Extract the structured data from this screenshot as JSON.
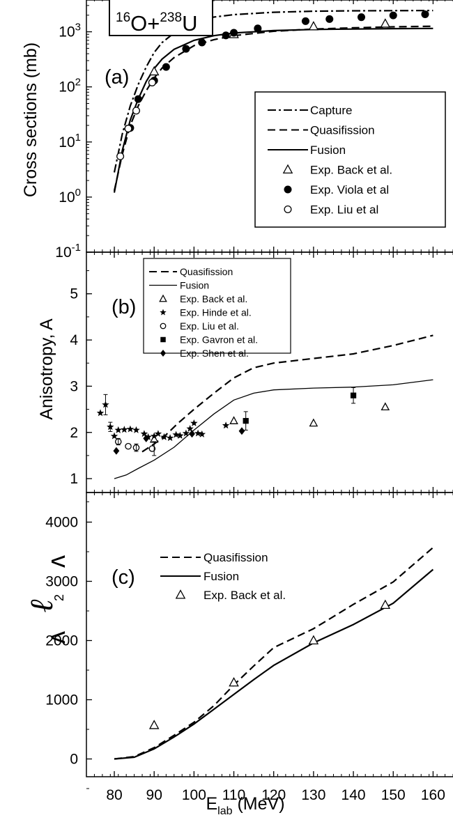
{
  "figure": {
    "reaction": {
      "base": "O+",
      "base2": "U",
      "sup1": "16",
      "sup2": "238"
    },
    "xlabel": {
      "main": "E",
      "sub": "lab",
      "unit": " (MeV)"
    },
    "xticks": [
      80,
      90,
      100,
      110,
      120,
      130,
      140,
      150,
      160
    ]
  },
  "chart_data": [
    {
      "panel": "(a)",
      "type": "line",
      "ylabel": "Cross sections (mb)",
      "yscale": "log",
      "ylim": [
        0.1,
        4000
      ],
      "xlim": [
        73,
        165
      ],
      "yticks": [
        {
          "v": 0.1,
          "base": "10",
          "exp": "-1"
        },
        {
          "v": 1,
          "base": "10",
          "exp": "0"
        },
        {
          "v": 10,
          "base": "10",
          "exp": "1"
        },
        {
          "v": 100,
          "base": "10",
          "exp": "2"
        },
        {
          "v": 1000,
          "base": "10",
          "exp": "3"
        }
      ],
      "legend": {
        "placement": "center-right"
      },
      "series": [
        {
          "name": "Capture",
          "style": "dashdot",
          "x": [
            80,
            82,
            84,
            86,
            88,
            90,
            92,
            95,
            100,
            105,
            110,
            120,
            130,
            140,
            150,
            160
          ],
          "y": [
            2.8,
            14,
            45,
            110,
            230,
            420,
            640,
            950,
            1480,
            1850,
            2050,
            2260,
            2360,
            2400,
            2420,
            2430
          ]
        },
        {
          "name": "Quasifission",
          "style": "dashed",
          "x": [
            80,
            82,
            84,
            86,
            88,
            90,
            92,
            95,
            100,
            105,
            110,
            120,
            130,
            140,
            150,
            160
          ],
          "y": [
            1.3,
            6,
            20,
            45,
            85,
            145,
            220,
            340,
            560,
            720,
            850,
            1020,
            1120,
            1180,
            1230,
            1260
          ]
        },
        {
          "name": "Fusion",
          "style": "solid",
          "x": [
            80,
            82,
            84,
            86,
            88,
            90,
            92,
            95,
            100,
            105,
            110,
            120,
            130,
            140,
            150,
            160
          ],
          "y": [
            1.2,
            7,
            25,
            60,
            125,
            215,
            320,
            480,
            700,
            850,
            950,
            1050,
            1100,
            1120,
            1140,
            1150
          ]
        },
        {
          "name": "Exp. Back et al.",
          "marker": "open-triangle",
          "x": [
            90,
            110,
            130,
            148
          ],
          "y": [
            190,
            900,
            1250,
            1400
          ]
        },
        {
          "name": "Exp. Viola et al",
          "marker": "filled-circle",
          "x": [
            84,
            86,
            90,
            93,
            98,
            102,
            108,
            110,
            116,
            128,
            134,
            142,
            150,
            158,
            166
          ],
          "y": [
            18,
            60,
            130,
            230,
            490,
            640,
            860,
            960,
            1150,
            1560,
            1700,
            1840,
            1980,
            2080,
            2120
          ]
        },
        {
          "name": "Exp. Liu et al",
          "marker": "open-circle",
          "x": [
            81.5,
            83.5,
            85.5,
            89.5
          ],
          "y": [
            5.5,
            17.5,
            37,
            120
          ]
        }
      ]
    },
    {
      "panel": "(b)",
      "type": "line",
      "ylabel": "Anisotropy, A",
      "ylim": [
        0.7,
        5.9
      ],
      "xlim": [
        73,
        165
      ],
      "yticks": [
        1,
        2,
        3,
        4,
        5
      ],
      "legend": {
        "placement": "top-center"
      },
      "series": [
        {
          "name": "Quasifission",
          "style": "dashed",
          "x": [
            87,
            90,
            93,
            96,
            100,
            105,
            110,
            115,
            120,
            130,
            140,
            150,
            160
          ],
          "y": [
            1.58,
            1.75,
            1.95,
            2.2,
            2.5,
            2.85,
            3.18,
            3.4,
            3.5,
            3.6,
            3.7,
            3.88,
            4.1
          ]
        },
        {
          "name": "Fusion",
          "style": "solid",
          "x": [
            80,
            83,
            86,
            90,
            95,
            100,
            105,
            110,
            115,
            120,
            130,
            140,
            150,
            160
          ],
          "y": [
            1.0,
            1.08,
            1.22,
            1.4,
            1.68,
            2.05,
            2.4,
            2.7,
            2.85,
            2.92,
            2.96,
            2.98,
            3.03,
            3.14
          ]
        },
        {
          "name": "Exp. Back et al.",
          "marker": "open-triangle",
          "x": [
            90,
            110,
            130,
            148
          ],
          "y": [
            1.85,
            2.25,
            2.2,
            2.55
          ]
        },
        {
          "name": "Exp. Hinde et al.",
          "marker": "filled-star",
          "x": [
            76.5,
            77.8,
            79,
            80,
            81,
            82.5,
            84,
            85.5,
            87.5,
            88.5,
            90,
            91,
            92.5,
            94,
            95.5,
            96.5,
            98,
            99,
            100,
            101,
            102,
            108
          ],
          "y": [
            2.42,
            2.6,
            2.12,
            1.92,
            2.05,
            2.06,
            2.07,
            2.05,
            1.97,
            1.9,
            1.92,
            1.97,
            1.9,
            1.88,
            1.95,
            1.93,
            1.98,
            2.08,
            2.2,
            1.98,
            1.96,
            2.15
          ]
        },
        {
          "name": "Exp. Liu et al.",
          "marker": "open-circle",
          "x": [
            81,
            83.5,
            85.5,
            89.5
          ],
          "y": [
            1.8,
            1.7,
            1.67,
            1.65
          ]
        },
        {
          "name": "Exp. Gavron et al.",
          "marker": "filled-square",
          "x": [
            113,
            140
          ],
          "y": [
            2.25,
            2.8
          ]
        },
        {
          "name": "Exp. Shen et al.",
          "marker": "filled-diamond",
          "x": [
            80.5,
            88,
            99.5,
            112
          ],
          "y": [
            1.6,
            1.87,
            1.97,
            2.03
          ]
        }
      ]
    },
    {
      "panel": "(c)",
      "type": "line",
      "ylabel": "< l² >",
      "ylim": [
        -300,
        4500
      ],
      "xlim": [
        73,
        165
      ],
      "yticks": [
        0,
        1000,
        2000,
        3000,
        4000
      ],
      "legend": {
        "placement": "top-center"
      },
      "series": [
        {
          "name": "Quasifission",
          "style": "dashed",
          "x": [
            80,
            85,
            90,
            95,
            100,
            105,
            110,
            115,
            120,
            130,
            140,
            150,
            160
          ],
          "y": [
            0,
            40,
            190,
            400,
            620,
            900,
            1250,
            1570,
            1880,
            2200,
            2610,
            2990,
            3570
          ]
        },
        {
          "name": "Fusion",
          "style": "solid",
          "x": [
            80,
            85,
            90,
            95,
            100,
            105,
            110,
            115,
            120,
            130,
            140,
            150,
            160
          ],
          "y": [
            0,
            30,
            170,
            370,
            590,
            840,
            1090,
            1340,
            1580,
            1960,
            2270,
            2630,
            3200
          ]
        },
        {
          "name": "Exp. Back et al.",
          "marker": "open-triangle",
          "x": [
            90,
            110,
            130,
            148
          ],
          "y": [
            570,
            1290,
            2000,
            2600
          ]
        }
      ]
    }
  ]
}
